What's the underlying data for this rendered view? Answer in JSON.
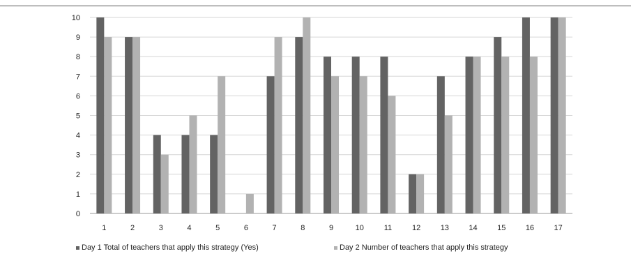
{
  "chart_data": {
    "type": "bar",
    "title": "",
    "xlabel": "",
    "ylabel": "",
    "categories": [
      "1",
      "2",
      "3",
      "4",
      "5",
      "6",
      "7",
      "8",
      "9",
      "10",
      "11",
      "12",
      "13",
      "14",
      "15",
      "16",
      "17"
    ],
    "series": [
      {
        "name": "Day 1 Total of teachers that apply this strategy (Yes)",
        "color": "#636363",
        "values": [
          10,
          9,
          4,
          4,
          4,
          0,
          7,
          9,
          8,
          8,
          8,
          2,
          7,
          8,
          9,
          10,
          10
        ]
      },
      {
        "name": "Day 2 Number of teachers that apply this strategy",
        "color": "#b2b2b2",
        "values": [
          9,
          9,
          3,
          5,
          7,
          1,
          9,
          10,
          7,
          7,
          6,
          2,
          5,
          8,
          8,
          8,
          10
        ]
      }
    ],
    "ylim": [
      0,
      10
    ],
    "yticks": [
      "0",
      "1",
      "2",
      "3",
      "4",
      "5",
      "6",
      "7",
      "8",
      "9",
      "10"
    ],
    "grid": true,
    "legend_position": "bottom"
  }
}
